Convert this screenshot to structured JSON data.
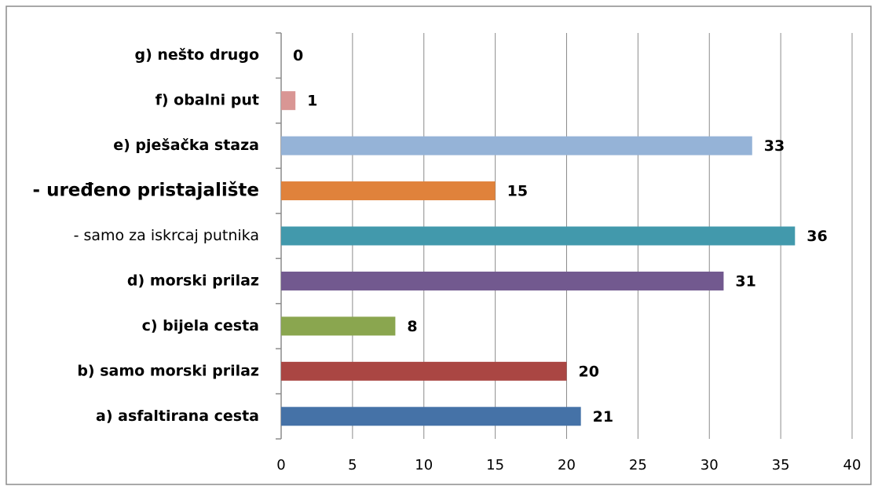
{
  "chart_data": {
    "type": "bar",
    "orientation": "horizontal",
    "categories": [
      "g) nešto drugo",
      "f) obalni put",
      "e) pješačka staza",
      "- uređeno pristajalište",
      "- samo za iskrcaj putnika",
      "d) morski prilaz",
      "c) bijela cesta",
      "b) samo morski prilaz",
      "a) asfaltirana cesta"
    ],
    "values": [
      0,
      1,
      33,
      15,
      36,
      31,
      8,
      20,
      21
    ],
    "colors": [
      "#c0c0c0",
      "#d99694",
      "#95b3d7",
      "#e0823b",
      "#4299ac",
      "#72598f",
      "#8aa64f",
      "#aa4643",
      "#4572a7"
    ],
    "xlim": [
      0,
      40
    ],
    "xticks": [
      0,
      5,
      10,
      15,
      20,
      25,
      30,
      35,
      40
    ],
    "grid": true
  }
}
